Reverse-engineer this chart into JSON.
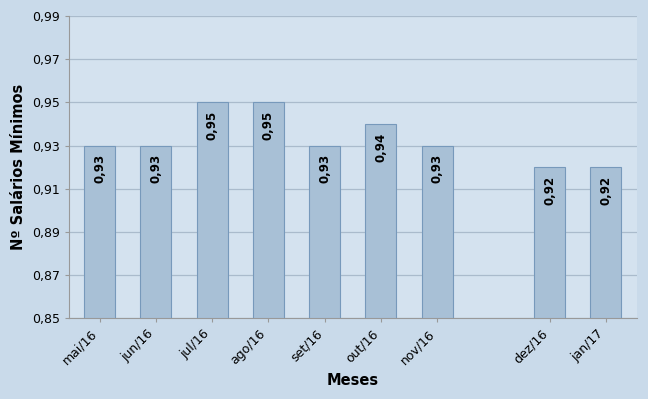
{
  "categories": [
    "mai/16",
    "jun/16",
    "jul/16",
    "ago/16",
    "set/16",
    "out/16",
    "nov/16",
    "dez/16",
    "jan/17"
  ],
  "values": [
    0.93,
    0.93,
    0.95,
    0.95,
    0.93,
    0.94,
    0.93,
    0.92,
    0.92
  ],
  "x_positions": [
    0,
    1,
    2,
    3,
    4,
    5,
    6,
    8,
    9
  ],
  "bar_color": "#a8c0d6",
  "bar_edge_color": "#7799bb",
  "background_color": "#c9daea",
  "plot_bg_color": "#d4e2ef",
  "grid_color": "#aabbcc",
  "ylabel": "Nº Salários Mínimos",
  "xlabel": "Meses",
  "ylim": [
    0.85,
    0.99
  ],
  "yticks": [
    0.85,
    0.87,
    0.89,
    0.91,
    0.93,
    0.95,
    0.97,
    0.99
  ],
  "bar_width": 0.55,
  "label_fontsize": 8.5,
  "axis_label_fontsize": 10.5,
  "tick_fontsize": 9,
  "figsize": [
    6.48,
    3.99
  ],
  "dpi": 100
}
